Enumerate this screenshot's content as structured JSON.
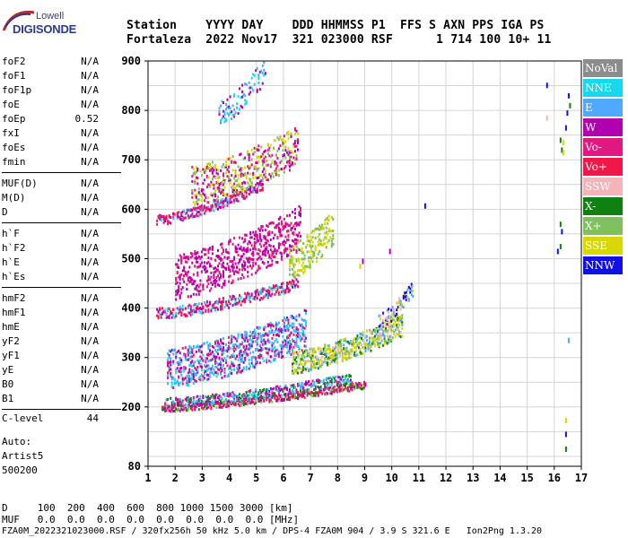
{
  "logo": {
    "line1": "Lowell",
    "line2": "DIGISONDE"
  },
  "header": {
    "line1": "Station    YYYY DAY    DDD HHMMSS P1  FFS S AXN PPS IGA PS",
    "line2": "Fortaleza  2022 Nov17  321 023000 RSF      1 714 100 10+ 11"
  },
  "parameters": [
    {
      "name": "foF2",
      "value": "N/A"
    },
    {
      "name": "foF1",
      "value": "N/A"
    },
    {
      "name": "foF1p",
      "value": "N/A"
    },
    {
      "name": "foE",
      "value": "N/A"
    },
    {
      "name": "foEp",
      "value": "0.52"
    },
    {
      "name": "fxI",
      "value": "N/A"
    },
    {
      "name": "foEs",
      "value": "N/A"
    },
    {
      "name": "fmin",
      "value": "N/A"
    },
    {
      "name": "MUF(D)",
      "value": "N/A"
    },
    {
      "name": "M(D)",
      "value": "N/A"
    },
    {
      "name": "D",
      "value": "N/A"
    },
    {
      "name": "h`F",
      "value": "N/A"
    },
    {
      "name": "h`F2",
      "value": "N/A"
    },
    {
      "name": "h`E",
      "value": "N/A"
    },
    {
      "name": "h`Es",
      "value": "N/A"
    },
    {
      "name": "hmF2",
      "value": "N/A"
    },
    {
      "name": "hmF1",
      "value": "N/A"
    },
    {
      "name": "hmE",
      "value": "N/A"
    },
    {
      "name": "yF2",
      "value": "N/A"
    },
    {
      "name": "yF1",
      "value": "N/A"
    },
    {
      "name": "yE",
      "value": "N/A"
    },
    {
      "name": "B0",
      "value": "N/A"
    },
    {
      "name": "B1",
      "value": "N/A"
    }
  ],
  "clevel": {
    "name": "C-level",
    "value": "44"
  },
  "auto": {
    "line1": "Auto:",
    "line2": "Artist5",
    "line3": "500200"
  },
  "footer": {
    "d_row": "D     100  200  400  600  800 1000 1500 3000 [km]",
    "muf_row": "MUF   0.0  0.0  0.0  0.0  0.0  0.0  0.0  0.0 [MHz]",
    "info_row": "FZA0M_2022321023000.RSF / 320fx256h 50 kHz 5.0 km / DPS-4 FZA0M 904 / 3.9 S 321.6 E   Ion2Png 1.3.20"
  },
  "chart_data": {
    "type": "scatter",
    "x_ticks": [
      "1",
      "2",
      "3",
      "4",
      "5",
      "6",
      "7",
      "8",
      "9",
      "10",
      "11",
      "12",
      "13",
      "14",
      "15",
      "16",
      "17"
    ],
    "y_ticks": [
      "80",
      "200",
      "300",
      "400",
      "500",
      "600",
      "700",
      "800",
      "900"
    ],
    "xlim": [
      1,
      17
    ],
    "ylim": [
      80,
      900
    ],
    "grid": true,
    "legend_position": "right",
    "legend": [
      {
        "label": "NoVal",
        "color": "#8c8c8c"
      },
      {
        "label": "NNE",
        "color": "#18d8f0"
      },
      {
        "label": "E",
        "color": "#50a8ff"
      },
      {
        "label": "W",
        "color": "#b000b0"
      },
      {
        "label": "Vo-",
        "color": "#e01880"
      },
      {
        "label": "Vo+",
        "color": "#f01848"
      },
      {
        "label": "SSW",
        "color": "#f4b4b8"
      },
      {
        "label": "X-",
        "color": "#108010"
      },
      {
        "label": "X+",
        "color": "#80c060"
      },
      {
        "label": "SSE",
        "color": "#d8d800"
      },
      {
        "label": "NNW",
        "color": "#1010e0"
      }
    ],
    "traces": [
      {
        "name": "E-layer O",
        "x_start": 1.5,
        "x_end": 9.0,
        "h_start": 193,
        "h_end": 240,
        "width": 14,
        "density": 0.9,
        "colors": [
          "#f01848",
          "#e01880",
          "#b000b0",
          "#108010",
          "#80c060"
        ]
      },
      {
        "name": "E-layer upper",
        "x_start": 1.6,
        "x_end": 8.5,
        "h_start": 200,
        "h_end": 250,
        "width": 20,
        "density": 0.7,
        "colors": [
          "#b000b0",
          "#50a8ff",
          "#18d8f0",
          "#e01880",
          "#108010"
        ]
      },
      {
        "name": "diffuse band",
        "x_start": 1.7,
        "x_end": 6.8,
        "h_start": 240,
        "h_end": 320,
        "width": 80,
        "density": 0.5,
        "colors": [
          "#b000b0",
          "#e01880",
          "#50a8ff",
          "#18d8f0"
        ]
      },
      {
        "name": "F-trace",
        "x_start": 6.3,
        "x_end": 10.4,
        "h_start": 270,
        "h_end": 345,
        "width": 45,
        "density": 0.75,
        "colors": [
          "#d8d800",
          "#d8d800",
          "#50a8ff",
          "#f4b4b8",
          "#80c060",
          "#108010"
        ]
      },
      {
        "name": "F-cusp",
        "x_start": 9.5,
        "x_end": 10.8,
        "h_start": 360,
        "h_end": 430,
        "width": 30,
        "density": 0.6,
        "colors": [
          "#f4b4b8",
          "#50a8ff",
          "#1010e0",
          "#d8d800"
        ]
      },
      {
        "name": "2nd hop",
        "x_start": 1.3,
        "x_end": 6.5,
        "h_start": 380,
        "h_end": 440,
        "width": 22,
        "density": 0.7,
        "colors": [
          "#b000b0",
          "#e01880",
          "#f01848",
          "#18d8f0"
        ]
      },
      {
        "name": "2nd hop diffuse",
        "x_start": 2.0,
        "x_end": 6.6,
        "h_start": 420,
        "h_end": 520,
        "width": 90,
        "density": 0.35,
        "colors": [
          "#b000b0",
          "#e01880"
        ]
      },
      {
        "name": "SSE patch",
        "x_start": 6.2,
        "x_end": 7.8,
        "h_start": 460,
        "h_end": 530,
        "width": 70,
        "density": 0.45,
        "colors": [
          "#d8d800",
          "#80c060"
        ]
      },
      {
        "name": "3rd hop",
        "x_start": 1.3,
        "x_end": 5.2,
        "h_start": 570,
        "h_end": 640,
        "width": 20,
        "density": 0.75,
        "colors": [
          "#b000b0",
          "#e01880",
          "#f01848",
          "#50a8ff"
        ]
      },
      {
        "name": "3rd hop diffuse",
        "x_start": 2.6,
        "x_end": 6.5,
        "h_start": 610,
        "h_end": 690,
        "width": 80,
        "density": 0.35,
        "colors": [
          "#b000b0",
          "#e01880",
          "#80c060",
          "#d8d800"
        ]
      },
      {
        "name": "4th hop",
        "x_start": 3.6,
        "x_end": 5.3,
        "h_start": 770,
        "h_end": 860,
        "width": 50,
        "density": 0.2,
        "colors": [
          "#b000b0",
          "#50a8ff",
          "#18d8f0"
        ]
      }
    ],
    "points": [
      {
        "x": 15.7,
        "y": 856,
        "color": "#1010e0"
      },
      {
        "x": 16.5,
        "y": 835,
        "color": "#1010e0"
      },
      {
        "x": 16.55,
        "y": 815,
        "color": "#108010"
      },
      {
        "x": 16.45,
        "y": 800,
        "color": "#1010e0"
      },
      {
        "x": 15.7,
        "y": 790,
        "color": "#f4b4b8"
      },
      {
        "x": 16.4,
        "y": 770,
        "color": "#1010e0"
      },
      {
        "x": 16.2,
        "y": 745,
        "color": "#108010"
      },
      {
        "x": 16.3,
        "y": 740,
        "color": "#d8d800"
      },
      {
        "x": 16.25,
        "y": 725,
        "color": "#108010"
      },
      {
        "x": 16.3,
        "y": 720,
        "color": "#d8d800"
      },
      {
        "x": 11.2,
        "y": 612,
        "color": "#1010e0"
      },
      {
        "x": 16.2,
        "y": 575,
        "color": "#108010"
      },
      {
        "x": 16.25,
        "y": 560,
        "color": "#1010e0"
      },
      {
        "x": 16.2,
        "y": 530,
        "color": "#108010"
      },
      {
        "x": 16.1,
        "y": 520,
        "color": "#1010e0"
      },
      {
        "x": 16.5,
        "y": 340,
        "color": "#50a8ff"
      },
      {
        "x": 16.4,
        "y": 178,
        "color": "#d8d800"
      },
      {
        "x": 16.4,
        "y": 150,
        "color": "#1010e0"
      },
      {
        "x": 16.4,
        "y": 120,
        "color": "#108010"
      },
      {
        "x": 9.9,
        "y": 520,
        "color": "#b000b0"
      },
      {
        "x": 8.9,
        "y": 500,
        "color": "#b000b0"
      },
      {
        "x": 8.8,
        "y": 490,
        "color": "#d8d800"
      }
    ]
  }
}
